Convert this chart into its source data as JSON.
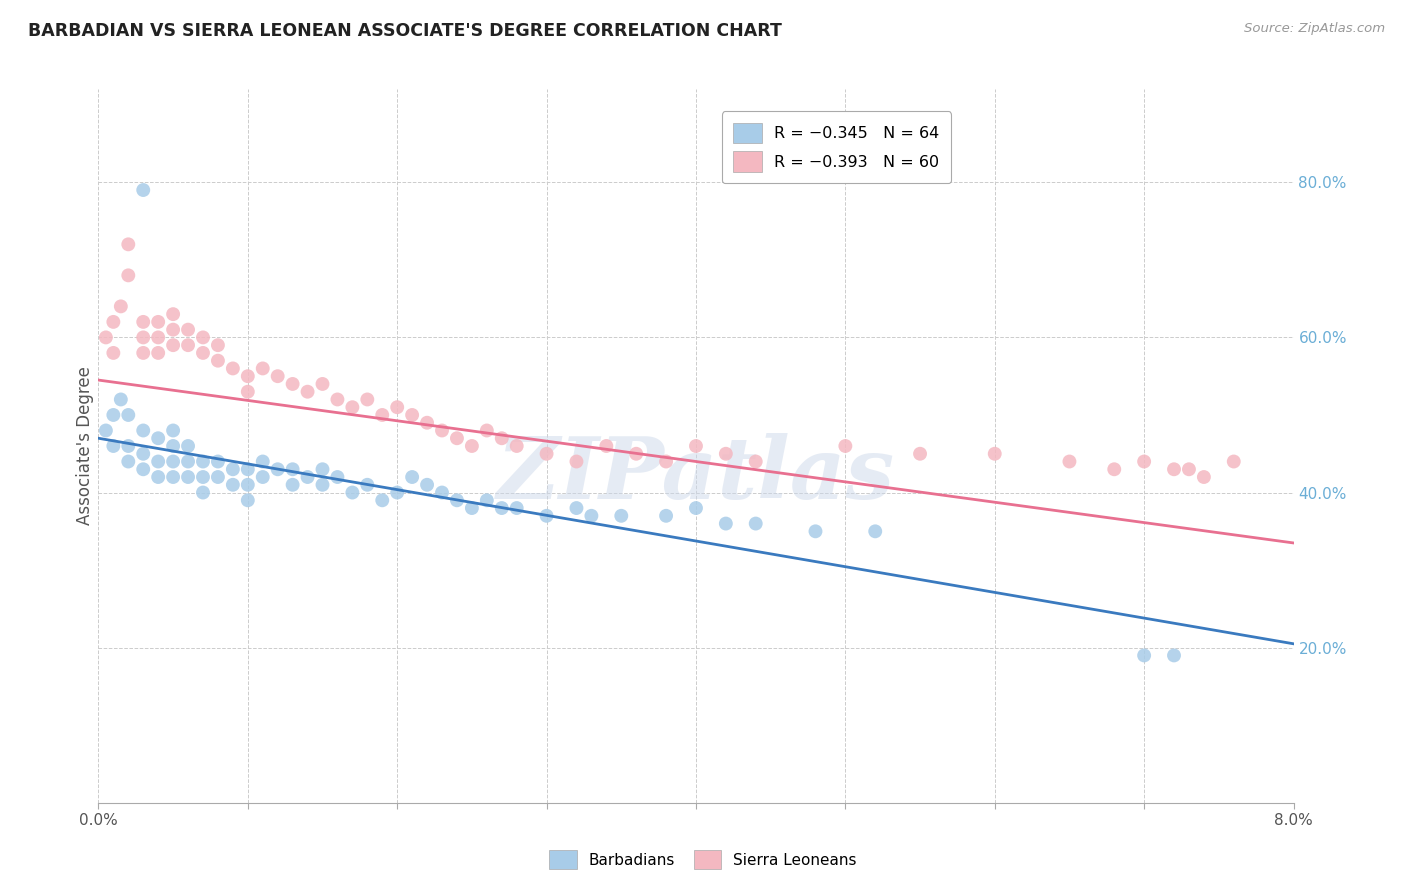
{
  "title": "BARBADIAN VS SIERRA LEONEAN ASSOCIATE'S DEGREE CORRELATION CHART",
  "source": "Source: ZipAtlas.com",
  "ylabel": "Associate's Degree",
  "yaxis_labels": [
    "20.0%",
    "40.0%",
    "60.0%",
    "80.0%"
  ],
  "yaxis_values": [
    0.2,
    0.4,
    0.6,
    0.8
  ],
  "xlim": [
    0.0,
    0.08
  ],
  "ylim": [
    0.0,
    0.92
  ],
  "legend_blue_r": "R = -0.345",
  "legend_blue_n": "N = 64",
  "legend_pink_r": "R = -0.393",
  "legend_pink_n": "N = 60",
  "barbadian_label": "Barbadians",
  "sierraleonean_label": "Sierra Leoneans",
  "blue_color": "#a8cce8",
  "pink_color": "#f4b8c1",
  "blue_line_color": "#3a7abf",
  "pink_line_color": "#e87090",
  "watermark": "ZIPatlas",
  "blue_line_x": [
    0.0,
    0.08
  ],
  "blue_line_y": [
    0.47,
    0.205
  ],
  "pink_line_x": [
    0.0,
    0.08
  ],
  "pink_line_y": [
    0.545,
    0.335
  ],
  "blue_scatter_x": [
    0.0005,
    0.001,
    0.001,
    0.0015,
    0.002,
    0.002,
    0.002,
    0.003,
    0.003,
    0.003,
    0.003,
    0.004,
    0.004,
    0.004,
    0.005,
    0.005,
    0.005,
    0.005,
    0.006,
    0.006,
    0.006,
    0.007,
    0.007,
    0.007,
    0.008,
    0.008,
    0.009,
    0.009,
    0.01,
    0.01,
    0.01,
    0.011,
    0.011,
    0.012,
    0.013,
    0.013,
    0.014,
    0.015,
    0.015,
    0.016,
    0.017,
    0.018,
    0.019,
    0.02,
    0.021,
    0.022,
    0.023,
    0.024,
    0.025,
    0.026,
    0.027,
    0.028,
    0.03,
    0.032,
    0.033,
    0.035,
    0.038,
    0.04,
    0.042,
    0.044,
    0.048,
    0.052,
    0.07,
    0.072
  ],
  "blue_scatter_y": [
    0.48,
    0.5,
    0.46,
    0.52,
    0.46,
    0.5,
    0.44,
    0.48,
    0.45,
    0.43,
    0.79,
    0.47,
    0.44,
    0.42,
    0.48,
    0.46,
    0.44,
    0.42,
    0.46,
    0.44,
    0.42,
    0.44,
    0.42,
    0.4,
    0.44,
    0.42,
    0.43,
    0.41,
    0.43,
    0.41,
    0.39,
    0.44,
    0.42,
    0.43,
    0.43,
    0.41,
    0.42,
    0.43,
    0.41,
    0.42,
    0.4,
    0.41,
    0.39,
    0.4,
    0.42,
    0.41,
    0.4,
    0.39,
    0.38,
    0.39,
    0.38,
    0.38,
    0.37,
    0.38,
    0.37,
    0.37,
    0.37,
    0.38,
    0.36,
    0.36,
    0.35,
    0.35,
    0.19,
    0.19
  ],
  "pink_scatter_x": [
    0.0005,
    0.001,
    0.001,
    0.0015,
    0.002,
    0.002,
    0.003,
    0.003,
    0.003,
    0.004,
    0.004,
    0.004,
    0.005,
    0.005,
    0.005,
    0.006,
    0.006,
    0.007,
    0.007,
    0.008,
    0.008,
    0.009,
    0.01,
    0.01,
    0.011,
    0.012,
    0.013,
    0.014,
    0.015,
    0.016,
    0.017,
    0.018,
    0.019,
    0.02,
    0.021,
    0.022,
    0.023,
    0.024,
    0.025,
    0.026,
    0.027,
    0.028,
    0.03,
    0.032,
    0.034,
    0.036,
    0.038,
    0.04,
    0.042,
    0.044,
    0.05,
    0.055,
    0.06,
    0.065,
    0.068,
    0.07,
    0.072,
    0.073,
    0.074,
    0.076
  ],
  "pink_scatter_y": [
    0.6,
    0.62,
    0.58,
    0.64,
    0.68,
    0.72,
    0.62,
    0.6,
    0.58,
    0.62,
    0.6,
    0.58,
    0.63,
    0.61,
    0.59,
    0.61,
    0.59,
    0.6,
    0.58,
    0.59,
    0.57,
    0.56,
    0.55,
    0.53,
    0.56,
    0.55,
    0.54,
    0.53,
    0.54,
    0.52,
    0.51,
    0.52,
    0.5,
    0.51,
    0.5,
    0.49,
    0.48,
    0.47,
    0.46,
    0.48,
    0.47,
    0.46,
    0.45,
    0.44,
    0.46,
    0.45,
    0.44,
    0.46,
    0.45,
    0.44,
    0.46,
    0.45,
    0.45,
    0.44,
    0.43,
    0.44,
    0.43,
    0.43,
    0.42,
    0.44
  ]
}
